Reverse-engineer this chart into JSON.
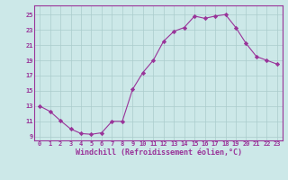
{
  "x": [
    0,
    1,
    2,
    3,
    4,
    5,
    6,
    7,
    8,
    9,
    10,
    11,
    12,
    13,
    14,
    15,
    16,
    17,
    18,
    19,
    20,
    21,
    22,
    23
  ],
  "y": [
    13.0,
    12.3,
    11.1,
    10.0,
    9.4,
    9.3,
    9.5,
    11.0,
    11.0,
    15.2,
    17.4,
    19.0,
    21.5,
    22.8,
    23.3,
    24.8,
    24.5,
    24.8,
    25.0,
    23.3,
    21.2,
    19.5,
    19.0,
    18.5
  ],
  "line_color": "#993399",
  "marker": "D",
  "marker_size": 2.2,
  "bg_color": "#cce8e8",
  "grid_color": "#aacccc",
  "xlabel": "Windchill (Refroidissement éolien,°C)",
  "xlabel_color": "#993399",
  "yticks": [
    9,
    11,
    13,
    15,
    17,
    19,
    21,
    23,
    25
  ],
  "xticks": [
    0,
    1,
    2,
    3,
    4,
    5,
    6,
    7,
    8,
    9,
    10,
    11,
    12,
    13,
    14,
    15,
    16,
    17,
    18,
    19,
    20,
    21,
    22,
    23
  ],
  "ylim": [
    8.5,
    26.2
  ],
  "xlim": [
    -0.5,
    23.5
  ],
  "tick_color": "#993399",
  "tick_fontsize": 5.0,
  "xlabel_fontsize": 6.0,
  "spine_color": "#993399"
}
